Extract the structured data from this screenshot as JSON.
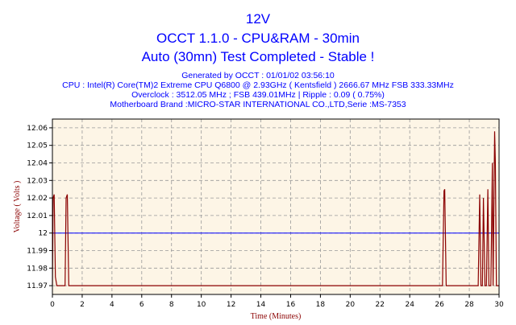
{
  "header": {
    "title": "12V",
    "subtitle1": "OCCT 1.1.0 - CPU&RAM - 30min",
    "subtitle2": "Auto (30mn) Test Completed - Stable !",
    "generated": "Generated by OCCT : 01/01/02 03:56:10",
    "cpu": "CPU : Intel(R) Core(TM)2 Extreme CPU Q6800  @ 2.93GHz ( Kentsfield ) 2666.67 MHz FSB 333.33MHz",
    "overclock": "Overclock : 3512.05 MHz ; FSB 439.01MHz | Ripple : 0.09 ( 0.75%)",
    "motherboard": "Motherboard Brand :MICRO-STAR INTERNATIONAL CO.,LTD,Serie :MS-7353"
  },
  "chart_data": {
    "type": "line",
    "xlabel": "Time (Minutes)",
    "ylabel": "Voltage ( Volts )",
    "xlim": [
      0,
      30
    ],
    "ylim": [
      11.965,
      12.065
    ],
    "xticks": [
      0,
      2,
      4,
      6,
      8,
      10,
      12,
      14,
      16,
      18,
      20,
      22,
      24,
      26,
      28,
      30
    ],
    "yticks": [
      11.97,
      11.98,
      11.99,
      12,
      12.01,
      12.02,
      12.03,
      12.04,
      12.05,
      12.06
    ],
    "ytick_labels": [
      "11.97",
      "11.98",
      "11.99",
      "12",
      "12.01",
      "12.02",
      "12.03",
      "12.04",
      "12.05",
      "12.06"
    ],
    "grid": true,
    "reference_line": 12.0,
    "colors": {
      "series": "#8b0000",
      "reference": "#0000ff",
      "background": "#fdf5e6",
      "grid": "#999999"
    },
    "series": [
      {
        "values": [
          [
            0,
            11.97
          ],
          [
            0.05,
            12.02
          ],
          [
            0.12,
            12.022
          ],
          [
            0.2,
            11.975
          ],
          [
            0.3,
            11.97
          ],
          [
            0.85,
            11.97
          ],
          [
            0.92,
            12.02
          ],
          [
            1.0,
            12.022
          ],
          [
            1.1,
            11.97
          ],
          [
            26.2,
            11.97
          ],
          [
            26.3,
            12.024
          ],
          [
            26.35,
            12.025
          ],
          [
            26.45,
            11.97
          ],
          [
            28.6,
            11.97
          ],
          [
            28.7,
            12.022
          ],
          [
            28.78,
            11.97
          ],
          [
            28.88,
            11.97
          ],
          [
            28.95,
            12.02
          ],
          [
            29.05,
            11.97
          ],
          [
            29.15,
            11.97
          ],
          [
            29.25,
            12.025
          ],
          [
            29.32,
            11.97
          ],
          [
            29.45,
            11.97
          ],
          [
            29.55,
            12.04
          ],
          [
            29.6,
            11.97
          ],
          [
            29.7,
            12.058
          ],
          [
            29.75,
            12.04
          ],
          [
            29.82,
            11.97
          ],
          [
            30,
            11.97
          ]
        ]
      }
    ]
  }
}
